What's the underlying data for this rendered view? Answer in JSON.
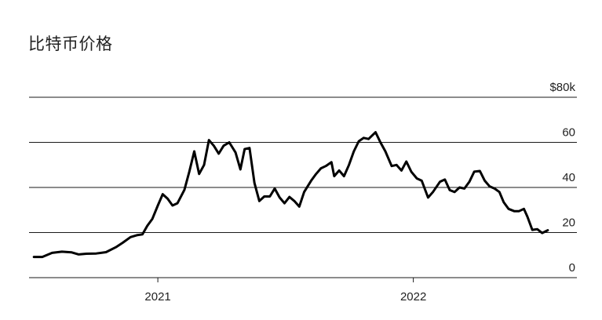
{
  "chart_data": {
    "type": "line",
    "title": "比特币价格",
    "xlabel": "",
    "ylabel": "",
    "xlim": [
      "2020-07-01",
      "2022-07-20"
    ],
    "ylim": [
      0,
      80
    ],
    "y_ticks": [
      {
        "value": 0,
        "label": "0"
      },
      {
        "value": 20,
        "label": "20"
      },
      {
        "value": 40,
        "label": "40"
      },
      {
        "value": 60,
        "label": "60"
      },
      {
        "value": 80,
        "label": "$80k"
      }
    ],
    "x_ticks": [
      {
        "value": "2021-01-01",
        "label": "2021"
      },
      {
        "value": "2022-01-01",
        "label": "2022"
      }
    ],
    "grid": "horizontal",
    "series": [
      {
        "color": "#000000",
        "unit": "thousand USD",
        "x": [
          "2020-07-08",
          "2020-07-20",
          "2020-08-03",
          "2020-08-17",
          "2020-08-31",
          "2020-09-10",
          "2020-09-21",
          "2020-10-05",
          "2020-10-19",
          "2020-11-02",
          "2020-11-12",
          "2020-11-23",
          "2020-12-02",
          "2020-12-10",
          "2020-12-17",
          "2020-12-24",
          "2021-01-01",
          "2021-01-08",
          "2021-01-15",
          "2021-01-22",
          "2021-01-29",
          "2021-02-08",
          "2021-02-15",
          "2021-02-22",
          "2021-03-01",
          "2021-03-08",
          "2021-03-15",
          "2021-03-22",
          "2021-03-29",
          "2021-04-05",
          "2021-04-13",
          "2021-04-22",
          "2021-04-29",
          "2021-05-05",
          "2021-05-12",
          "2021-05-19",
          "2021-05-26",
          "2021-06-02",
          "2021-06-10",
          "2021-06-17",
          "2021-06-24",
          "2021-07-01",
          "2021-07-08",
          "2021-07-15",
          "2021-07-22",
          "2021-07-29",
          "2021-08-08",
          "2021-08-15",
          "2021-08-22",
          "2021-08-29",
          "2021-09-06",
          "2021-09-10",
          "2021-09-17",
          "2021-09-24",
          "2021-10-01",
          "2021-10-08",
          "2021-10-15",
          "2021-10-22",
          "2021-10-29",
          "2021-11-08",
          "2021-11-15",
          "2021-11-22",
          "2021-12-01",
          "2021-12-08",
          "2021-12-15",
          "2021-12-22",
          "2021-12-29",
          "2022-01-06",
          "2022-01-13",
          "2022-01-22",
          "2022-01-29",
          "2022-02-08",
          "2022-02-15",
          "2022-02-22",
          "2022-03-01",
          "2022-03-08",
          "2022-03-15",
          "2022-03-22",
          "2022-03-29",
          "2022-04-06",
          "2022-04-13",
          "2022-04-20",
          "2022-04-27",
          "2022-05-04",
          "2022-05-10",
          "2022-05-17",
          "2022-05-25",
          "2022-06-01",
          "2022-06-08",
          "2022-06-13",
          "2022-06-20",
          "2022-06-27",
          "2022-07-04",
          "2022-07-12"
        ],
        "y": [
          9.2,
          9.2,
          11,
          11.5,
          11.2,
          10.3,
          10.6,
          10.7,
          11.3,
          13.5,
          15.5,
          18,
          18.8,
          19.2,
          23,
          26,
          32,
          37,
          35,
          32,
          33,
          39,
          47,
          56,
          46,
          50,
          61,
          58.5,
          55,
          58.5,
          60,
          55.5,
          48,
          57,
          57.5,
          42,
          34,
          36,
          36,
          39.5,
          35.5,
          33,
          35.8,
          34,
          31.5,
          38,
          43,
          46,
          48.5,
          49.5,
          51.2,
          45,
          47.5,
          45,
          50,
          56,
          60.5,
          62,
          61.5,
          64.5,
          60,
          56,
          49.5,
          50,
          47.5,
          51.5,
          47,
          44,
          43,
          35.5,
          38,
          42.5,
          43.5,
          38.8,
          38,
          40,
          39.5,
          42.5,
          47,
          47.3,
          43,
          40.5,
          39.5,
          38,
          33.5,
          30.5,
          29.5,
          29.5,
          30.5,
          27,
          21.2,
          21.5,
          19.8,
          21
        ]
      }
    ]
  }
}
